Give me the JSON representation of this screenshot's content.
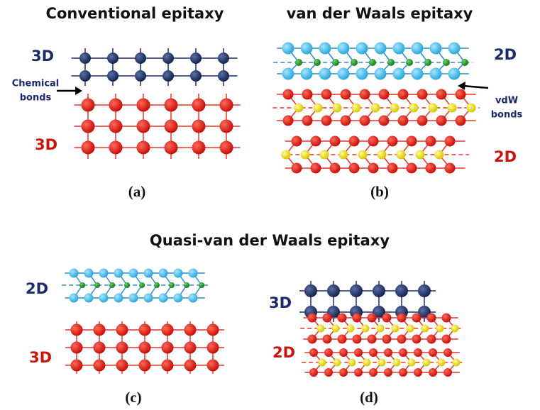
{
  "panels": [
    {
      "title": "Conventional epitaxy",
      "layers": [
        "3D",
        "3D"
      ],
      "annotation": [
        "Chemical",
        "bonds"
      ],
      "label": "(a)"
    },
    {
      "title": "van der Waals epitaxy",
      "layers": [
        "2D",
        "2D"
      ],
      "annotation": [
        "vdW",
        "bonds"
      ],
      "label": "(b)"
    },
    {
      "layers": [
        "2D",
        "3D"
      ],
      "label": "(c)"
    },
    {
      "layers": [
        "3D",
        "2D"
      ],
      "label": "(d)"
    }
  ],
  "group_title": "Quasi-van der Waals epitaxy"
}
